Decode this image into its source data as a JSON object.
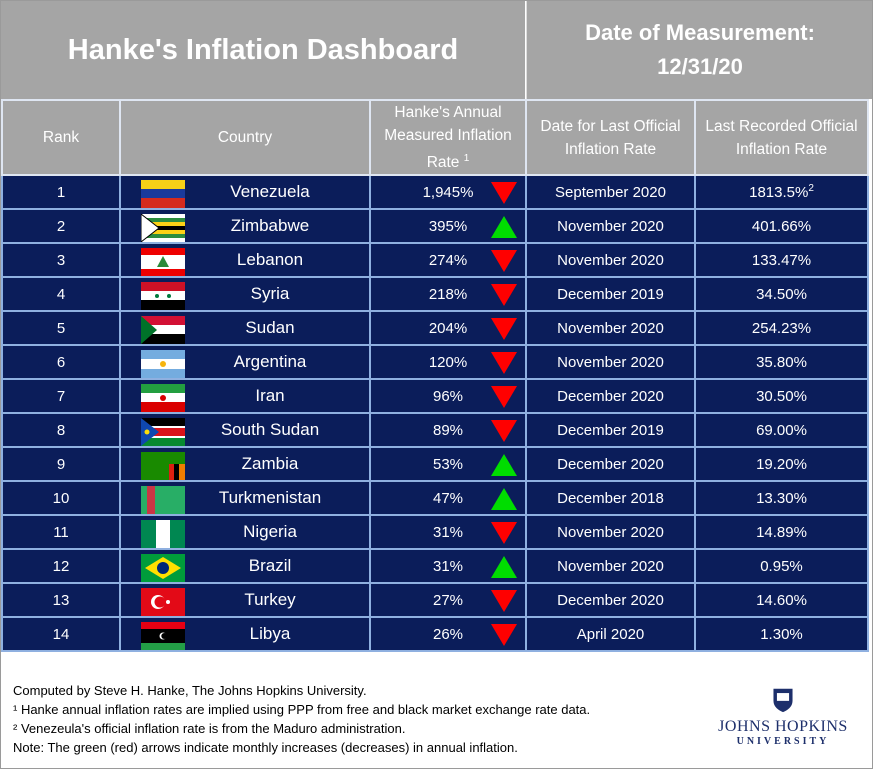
{
  "header": {
    "title": "Hanke's Inflation Dashboard",
    "date_label": "Date of Measurement:",
    "date_value": "12/31/20"
  },
  "columns": [
    "Rank",
    "Country",
    "Hanke's Annual Measured Inflation Rate",
    "Date for Last Official Inflation Rate",
    "Last Recorded Official Inflation Rate"
  ],
  "col_footnote": "1",
  "colors": {
    "row_bg": "#0b1d5a",
    "header_bg": "#a5a5a5",
    "up": "#00dd00",
    "down": "#ff0000"
  },
  "rows": [
    {
      "rank": "1",
      "country": "Venezuela",
      "flag": "venezuela",
      "rate": "1,945%",
      "trend": "down",
      "date": "September 2020",
      "official": "1813.5%",
      "official_note": "2"
    },
    {
      "rank": "2",
      "country": "Zimbabwe",
      "flag": "zimbabwe",
      "rate": "395%",
      "trend": "up",
      "date": "November 2020",
      "official": "401.66%"
    },
    {
      "rank": "3",
      "country": "Lebanon",
      "flag": "lebanon",
      "rate": "274%",
      "trend": "down",
      "date": "November 2020",
      "official": "133.47%"
    },
    {
      "rank": "4",
      "country": "Syria",
      "flag": "syria",
      "rate": "218%",
      "trend": "down",
      "date": "December 2019",
      "official": "34.50%"
    },
    {
      "rank": "5",
      "country": "Sudan",
      "flag": "sudan",
      "rate": "204%",
      "trend": "down",
      "date": "November 2020",
      "official": "254.23%"
    },
    {
      "rank": "6",
      "country": "Argentina",
      "flag": "argentina",
      "rate": "120%",
      "trend": "down",
      "date": "November 2020",
      "official": "35.80%"
    },
    {
      "rank": "7",
      "country": "Iran",
      "flag": "iran",
      "rate": "96%",
      "trend": "down",
      "date": "December 2020",
      "official": "30.50%"
    },
    {
      "rank": "8",
      "country": "South Sudan",
      "flag": "south-sudan",
      "rate": "89%",
      "trend": "down",
      "date": "December 2019",
      "official": "69.00%"
    },
    {
      "rank": "9",
      "country": "Zambia",
      "flag": "zambia",
      "rate": "53%",
      "trend": "up",
      "date": "December 2020",
      "official": "19.20%"
    },
    {
      "rank": "10",
      "country": "Turkmenistan",
      "flag": "turkmenistan",
      "rate": "47%",
      "trend": "up",
      "date": "December 2018",
      "official": "13.30%"
    },
    {
      "rank": "11",
      "country": "Nigeria",
      "flag": "nigeria",
      "rate": "31%",
      "trend": "down",
      "date": "November 2020",
      "official": "14.89%"
    },
    {
      "rank": "12",
      "country": "Brazil",
      "flag": "brazil",
      "rate": "31%",
      "trend": "up",
      "date": "November 2020",
      "official": "0.95%"
    },
    {
      "rank": "13",
      "country": "Turkey",
      "flag": "turkey",
      "rate": "27%",
      "trend": "down",
      "date": "December 2020",
      "official": "14.60%"
    },
    {
      "rank": "14",
      "country": "Libya",
      "flag": "libya",
      "rate": "26%",
      "trend": "down",
      "date": "April 2020",
      "official": "1.30%"
    }
  ],
  "footer": {
    "lines": [
      "Computed by Steve H. Hanke, The Johns Hopkins University.",
      "¹ Hanke annual inflation rates are implied using PPP from free and black market exchange rate data.",
      "² Venezeula's official inflation rate is from the Maduro administration.",
      "Note: The green (red) arrows indicate monthly increases (decreases) in annual inflation."
    ],
    "logo_name": "JOHNS HOPKINS",
    "logo_sub": "UNIVERSITY"
  }
}
